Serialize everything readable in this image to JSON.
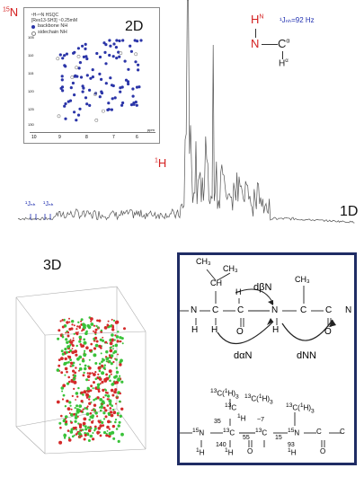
{
  "spectrum_1d": {
    "label": "1D",
    "j_labels": [
      "¹Jₙₕ",
      "¹Jₙₕ"
    ]
  },
  "hsqc_2d": {
    "label": "2D",
    "y_nucleus_sup": "15",
    "y_nucleus": "N",
    "x_nucleus_sup": "1",
    "x_nucleus": "H",
    "legend_title": "¹H-¹⁵N HSQC",
    "legend_sample": "[Rex13-SH3] ~0.25mM",
    "legend_backbone": "backbone NH",
    "legend_sidechain": "sidechain NH",
    "x_ticks": [
      "10",
      "9",
      "8",
      "7",
      "6",
      "ppm"
    ],
    "y_ticks": [
      "105",
      "110",
      "115",
      "120",
      "125",
      "130"
    ],
    "colors": {
      "backbone": "#2b35a8",
      "sidechain": "#808080"
    }
  },
  "nh_fragment": {
    "h_super": "N",
    "coupling": "¹Jₙₕ=92 Hz",
    "colors": {
      "n": "#d42020",
      "h": "#d42020",
      "coupling": "#2030b0"
    }
  },
  "scatter_3d": {
    "label": "3D",
    "colors": {
      "green": "#39c239",
      "red": "#d42a2a"
    }
  },
  "noe_panel": {
    "labels": {
      "d_beta_n": "dβN",
      "d_alpha_n": "dαN",
      "d_nn": "dNN"
    },
    "backbone_atoms": [
      "N",
      "C",
      "C",
      "N",
      "C",
      "C",
      "N"
    ],
    "h_atoms": [
      "H",
      "H",
      "H"
    ],
    "carbonyl_o": [
      "O",
      "O"
    ],
    "side_ch3": [
      "CH₃",
      "CH₃",
      "CH₃"
    ],
    "side_ch": "CH",
    "j_values": [
      "35",
      "~7",
      "55",
      "15",
      "93",
      "140"
    ],
    "isotope_label": "13C(¹H)3",
    "colors": {
      "border": "#1f2c64"
    }
  }
}
